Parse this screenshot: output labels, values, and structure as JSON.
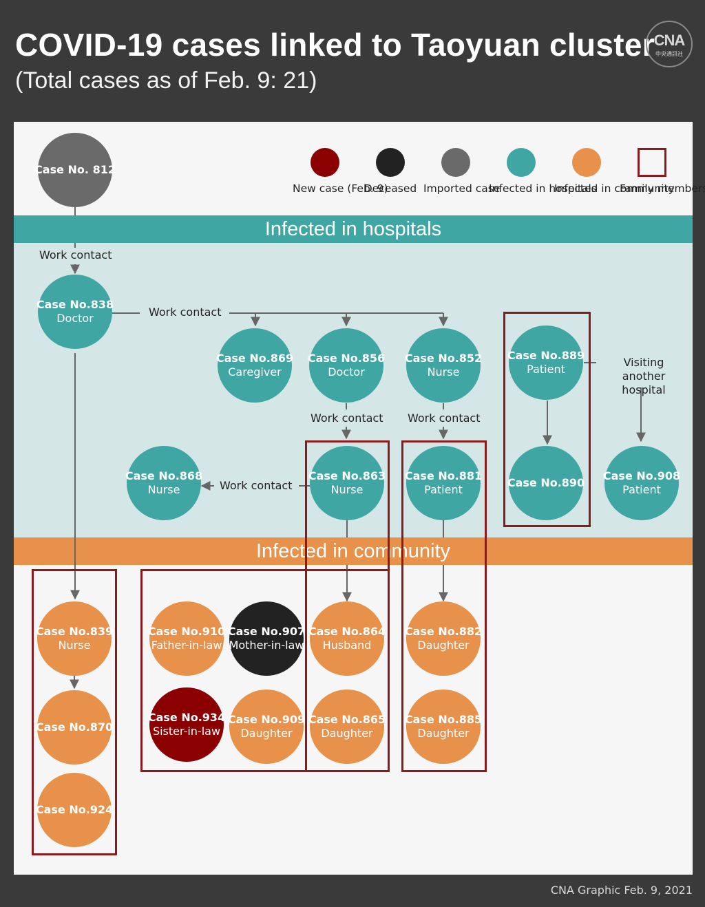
{
  "header": {
    "title": "COVID-19 cases linked to Taoyuan cluster",
    "subtitle": "(Total cases as of Feb. 9: 21)",
    "logo_text": "CNA",
    "logo_subtext": "中央通訊社"
  },
  "colors": {
    "new_case": "#8b0000",
    "deceased": "#222222",
    "imported": "#6a6a6a",
    "hospital": "#3fa6a4",
    "community": "#e8914a",
    "family_box": "#8b1a1a"
  },
  "legend": {
    "new_case": "New case (Feb. 9)",
    "deceased": "Deceased",
    "imported": "Imported case",
    "hospital": "Infected in hospitals",
    "community": "Infected in community",
    "family": "Family members"
  },
  "sections": {
    "hospitals": "Infected in hospitals",
    "community": "Infected in community"
  },
  "edge_labels": {
    "work_contact_812": "Work contact",
    "work_contact_838": "Work contact",
    "work_contact_856": "Work contact",
    "work_contact_852": "Work contact",
    "work_contact_863": "Work contact",
    "visiting_hospital": "Visiting another hospital"
  },
  "cases": {
    "c812": {
      "name": "Case No. 812",
      "role": ""
    },
    "c838": {
      "name": "Case No.838",
      "role": "Doctor"
    },
    "c869": {
      "name": "Case No.869",
      "role": "Caregiver"
    },
    "c856": {
      "name": "Case No.856",
      "role": "Doctor"
    },
    "c852": {
      "name": "Case No.852",
      "role": "Nurse"
    },
    "c889": {
      "name": "Case No.889",
      "role": "Patient"
    },
    "c868": {
      "name": "Case No.868",
      "role": "Nurse"
    },
    "c863": {
      "name": "Case No.863",
      "role": "Nurse"
    },
    "c881": {
      "name": "Case No.881",
      "role": "Patient"
    },
    "c890": {
      "name": "Case No.890",
      "role": ""
    },
    "c908": {
      "name": "Case No.908",
      "role": "Patient"
    },
    "c839": {
      "name": "Case No.839",
      "role": "Nurse"
    },
    "c870": {
      "name": "Case No.870",
      "role": ""
    },
    "c924": {
      "name": "Case No.924",
      "role": ""
    },
    "c910": {
      "name": "Case No.910",
      "role": "Father-in-law"
    },
    "c907": {
      "name": "Case No.907",
      "role": "Mother-in-law"
    },
    "c864": {
      "name": "Case No.864",
      "role": "Husband"
    },
    "c934": {
      "name": "Case No.934",
      "role": "Sister-in-law"
    },
    "c909": {
      "name": "Case No.909",
      "role": "Daughter"
    },
    "c865": {
      "name": "Case No.865",
      "role": "Daughter"
    },
    "c882": {
      "name": "Case No.882",
      "role": "Daughter"
    },
    "c885": {
      "name": "Case No.885",
      "role": "Daughter"
    }
  },
  "footer": {
    "credit": "CNA Graphic Feb. 9, 2021"
  }
}
